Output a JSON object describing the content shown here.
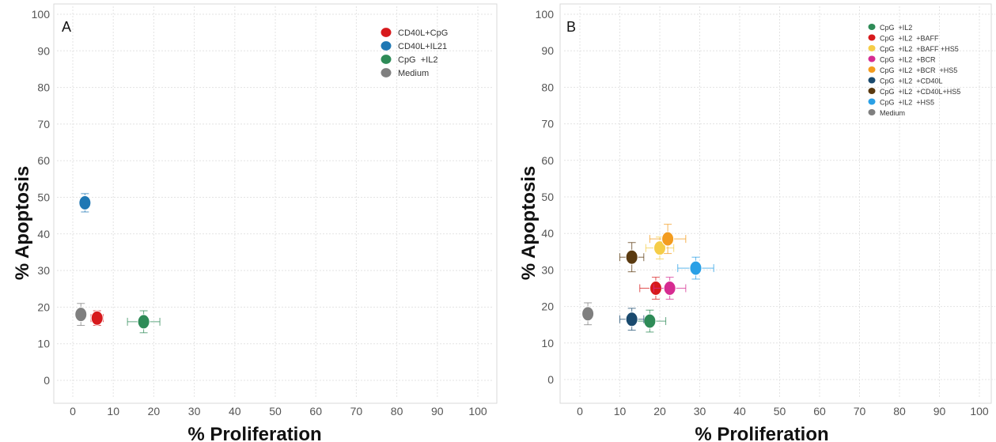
{
  "chart_data": [
    {
      "type": "scatter",
      "panel": "A",
      "xlabel": "% Proliferation",
      "ylabel": "% Apoptosis",
      "xlim": [
        0,
        100
      ],
      "ylim": [
        0,
        100
      ],
      "x_ticks": [
        "0",
        "10",
        "20",
        "30",
        "40",
        "50",
        "60",
        "70",
        "80",
        "90",
        "100"
      ],
      "y_ticks": [
        "0",
        "10",
        "20",
        "30",
        "40",
        "50",
        "60",
        "70",
        "80",
        "90",
        "100"
      ],
      "grid": true,
      "legend_position": "top-right",
      "series": [
        {
          "name": "CD40L+CpG",
          "color": "#d7191c",
          "x": 6,
          "y": 17,
          "x_err": 1.5,
          "y_err": 2
        },
        {
          "name": "CD40L+IL21",
          "color": "#1f78b4",
          "x": 3,
          "y": 48.5,
          "x_err": 0.5,
          "y_err": 2.5
        },
        {
          "name": "CpG  +IL2",
          "color": "#2e8b57",
          "x": 17.5,
          "y": 16,
          "x_err": 4,
          "y_err": 3
        },
        {
          "name": "Medium",
          "color": "#7f7f7f",
          "x": 2,
          "y": 18,
          "x_err": 0.5,
          "y_err": 3
        }
      ]
    },
    {
      "type": "scatter",
      "panel": "B",
      "xlabel": "% Proliferation",
      "ylabel": "% Apoptosis",
      "xlim": [
        0,
        100
      ],
      "ylim": [
        0,
        100
      ],
      "x_ticks": [
        "0",
        "10",
        "20",
        "30",
        "40",
        "50",
        "60",
        "70",
        "80",
        "90",
        "100"
      ],
      "y_ticks": [
        "0",
        "10",
        "20",
        "30",
        "40",
        "50",
        "60",
        "70",
        "80",
        "90",
        "100"
      ],
      "grid": true,
      "legend_position": "top-right",
      "series": [
        {
          "name": "CpG  +IL2",
          "color": "#2e8b57",
          "x": 17.5,
          "y": 16,
          "x_err": 4,
          "y_err": 3
        },
        {
          "name": "CpG  +IL2  +BAFF",
          "color": "#d7191c",
          "x": 19,
          "y": 25,
          "x_err": 4,
          "y_err": 3
        },
        {
          "name": "CpG  +IL2  +BAFF +HS5",
          "color": "#f5cd47",
          "x": 20,
          "y": 36,
          "x_err": 3.5,
          "y_err": 3
        },
        {
          "name": "CpG  +IL2  +BCR",
          "color": "#d62b91",
          "x": 22.5,
          "y": 25,
          "x_err": 4,
          "y_err": 3
        },
        {
          "name": "CpG  +IL2  +BCR  +HS5",
          "color": "#f39c1f",
          "x": 22,
          "y": 38.5,
          "x_err": 4.5,
          "y_err": 4
        },
        {
          "name": "CpG  +IL2  +CD40L",
          "color": "#1a4a6e",
          "x": 13,
          "y": 16.5,
          "x_err": 3,
          "y_err": 3
        },
        {
          "name": "CpG  +IL2  +CD40L+HS5",
          "color": "#5a3a10",
          "x": 13,
          "y": 33.5,
          "x_err": 3,
          "y_err": 4
        },
        {
          "name": "CpG  +IL2  +HS5",
          "color": "#2aa0e6",
          "x": 29,
          "y": 30.5,
          "x_err": 4.5,
          "y_err": 3
        },
        {
          "name": "Medium",
          "color": "#7f7f7f",
          "x": 2,
          "y": 18,
          "x_err": 0.5,
          "y_err": 3
        }
      ]
    }
  ]
}
